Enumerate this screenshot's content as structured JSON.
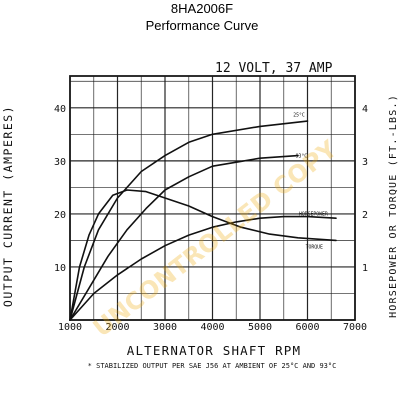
{
  "header": {
    "model": "8HA2006F",
    "subtitle": "Performance Curve"
  },
  "chart_data": {
    "type": "line",
    "title": "12 VOLT, 37 AMP",
    "xlabel": "ALTERNATOR SHAFT RPM",
    "ylabel_left": "OUTPUT CURRENT (AMPERES)",
    "ylabel_right": "HORSEPOWER OR TORQUE (FT.-LBS.)",
    "footnote": "* STABILIZED OUTPUT PER SAE J56 AT AMBIENT OF 25°C AND 93°C",
    "watermark": "UNCONTROLLED COPY",
    "x_ticks": [
      "1000",
      "2000",
      "3000",
      "4000",
      "5000",
      "6000",
      "7000"
    ],
    "y_left_ticks": [
      "10",
      "20",
      "30",
      "40"
    ],
    "y_right_ticks": [
      "1",
      "2",
      "3",
      "4"
    ],
    "xlim": [
      1000,
      7000
    ],
    "ylim_left": [
      0,
      46
    ],
    "ylim_right": [
      0,
      4.6
    ],
    "grid": true,
    "series": [
      {
        "name": "25°C",
        "axis": "left",
        "x": [
          1000,
          1300,
          1600,
          2000,
          2500,
          3000,
          3500,
          4000,
          5000,
          6000
        ],
        "values": [
          0,
          10,
          17,
          23,
          28,
          31,
          33.5,
          35,
          36.5,
          37.5
        ]
      },
      {
        "name": "93°C",
        "axis": "left",
        "x": [
          1000,
          1400,
          1800,
          2200,
          2600,
          3000,
          3500,
          4000,
          5000,
          5800
        ],
        "values": [
          0,
          6,
          12,
          17,
          21,
          24.5,
          27,
          29,
          30.5,
          31
        ]
      },
      {
        "name": "HORSEPOWER",
        "axis": "right",
        "x": [
          1000,
          1500,
          2000,
          2500,
          3000,
          3500,
          4000,
          4500,
          5000,
          5500,
          6000,
          6600
        ],
        "values": [
          0,
          0.5,
          0.85,
          1.15,
          1.4,
          1.6,
          1.75,
          1.85,
          1.92,
          1.95,
          1.95,
          1.92
        ]
      },
      {
        "name": "TORQUE",
        "axis": "right",
        "x": [
          1000,
          1200,
          1400,
          1600,
          1900,
          2200,
          2600,
          3000,
          3500,
          4000,
          4600,
          5200,
          5800,
          6600
        ],
        "values": [
          0,
          1.0,
          1.6,
          2.0,
          2.35,
          2.45,
          2.42,
          2.3,
          2.15,
          1.95,
          1.75,
          1.62,
          1.55,
          1.5
        ]
      }
    ]
  },
  "colors": {
    "grid": "#1a1a1a",
    "curve": "#111111",
    "watermark": "#f0a800"
  }
}
